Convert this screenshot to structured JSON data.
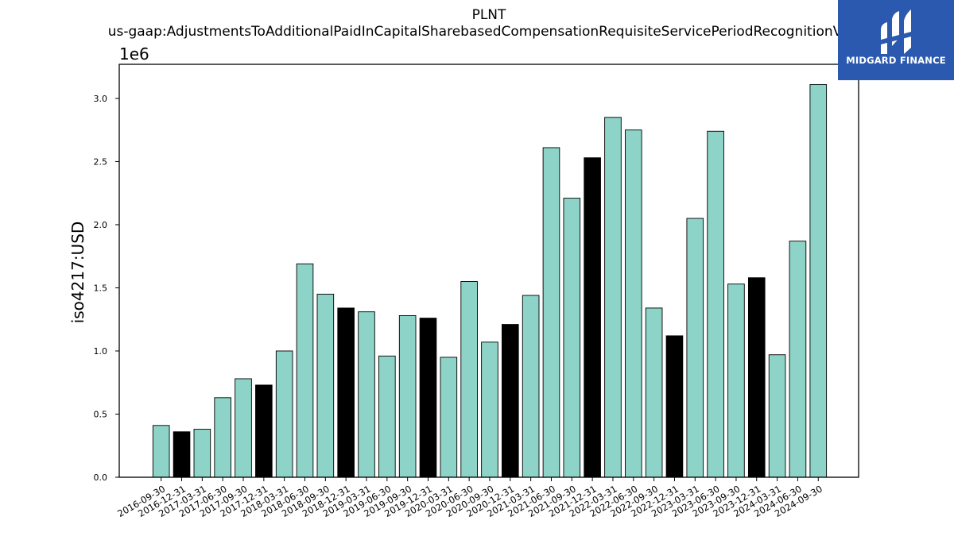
{
  "chart_data": {
    "type": "bar",
    "title": "PLNT",
    "subtitle": "us-gaap:AdjustmentsToAdditionalPaidInCapitalSharebasedCompensationRequisiteServicePeriodRecognitionValue",
    "ylabel": "iso4217:USD",
    "xlabel": "",
    "y_offset_label": "1e6",
    "ylim": [
      0,
      3.27
    ],
    "yticks": [
      "0.0",
      "0.5",
      "1.0",
      "1.5",
      "2.0",
      "2.5",
      "3.0"
    ],
    "grid": false,
    "categories": [
      "2016-09-30",
      "2016-12-31",
      "2017-03-31",
      "2017-06-30",
      "2017-09-30",
      "2017-12-31",
      "2018-03-31",
      "2018-06-30",
      "2018-09-30",
      "2018-12-31",
      "2019-03-31",
      "2019-06-30",
      "2019-09-30",
      "2019-12-31",
      "2020-03-31",
      "2020-06-30",
      "2020-09-30",
      "2020-12-31",
      "2021-03-31",
      "2021-06-30",
      "2021-09-30",
      "2021-12-31",
      "2022-03-31",
      "2022-06-30",
      "2022-09-30",
      "2022-12-31",
      "2023-03-31",
      "2023-06-30",
      "2023-09-30",
      "2023-12-31",
      "2024-03-31",
      "2024-06-30",
      "2024-09-30"
    ],
    "values": [
      0.41,
      0.36,
      0.38,
      0.63,
      0.78,
      0.73,
      1.0,
      1.69,
      1.45,
      1.34,
      1.31,
      0.96,
      1.28,
      1.26,
      0.95,
      1.55,
      1.07,
      1.21,
      1.44,
      2.61,
      2.21,
      2.53,
      2.85,
      2.75,
      1.34,
      1.12,
      2.05,
      2.74,
      1.53,
      1.58,
      0.97,
      1.87,
      3.11
    ],
    "colors": {
      "quarter": "#8dd3c7",
      "year_end": "#000000",
      "edge": "#000000"
    }
  },
  "logo": {
    "text": "MIDGARD FINANCE",
    "background": "#2b59b0"
  }
}
